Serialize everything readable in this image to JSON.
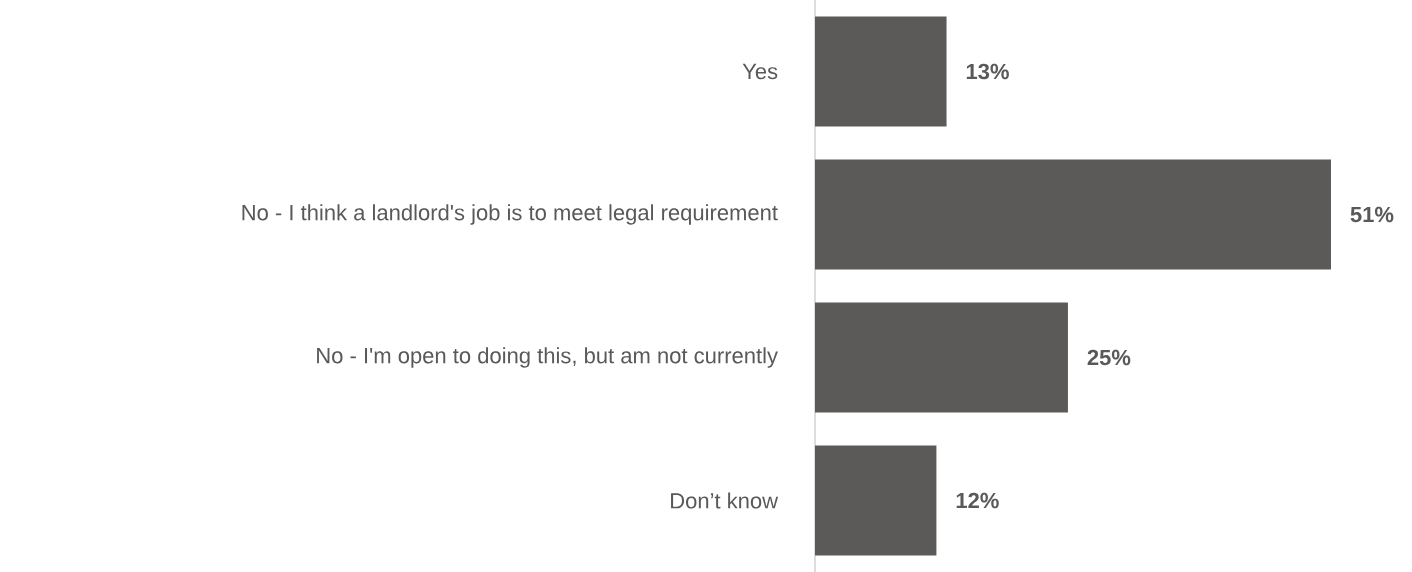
{
  "chart_data": {
    "type": "bar",
    "orientation": "horizontal",
    "categories": [
      "Yes",
      "No - I think a landlord's job is to meet legal requirement",
      "No - I'm open to doing this, but am not currently",
      "Don’t know"
    ],
    "values": [
      13,
      51,
      25,
      12
    ],
    "value_labels": [
      "13%",
      "51%",
      "25%",
      "12%"
    ],
    "color": "#5b5a58"
  }
}
